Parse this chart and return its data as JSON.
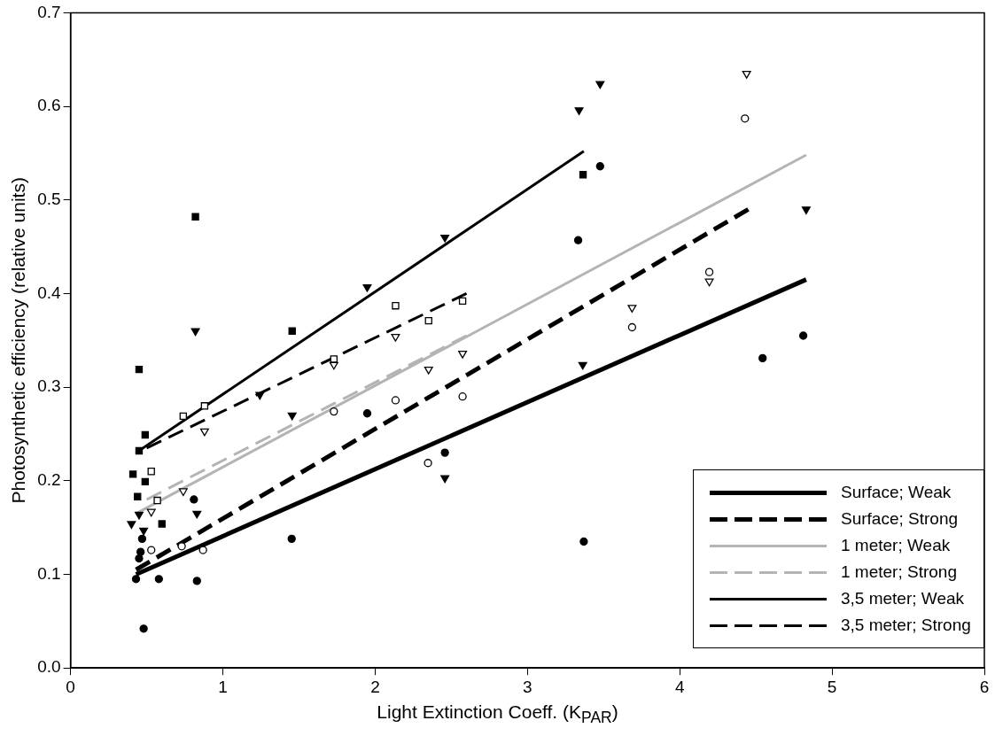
{
  "chart_data": {
    "type": "scatter",
    "xlabel": "Light Extinction Coeff. (K$_{PAR}$)",
    "ylabel": "Photosynthetic efficiency (relative units)",
    "xlim": [
      0,
      6
    ],
    "xticks": [
      0,
      1,
      2,
      3,
      4,
      5,
      6
    ],
    "ylim": [
      0,
      0.7
    ],
    "yticks": [
      {
        "value": 0,
        "label": "0.0"
      },
      {
        "value": 0.1,
        "label": "0.1"
      },
      {
        "value": 0.2,
        "label": "0.2"
      },
      {
        "value": 0.3,
        "label": "0.3"
      },
      {
        "value": 0.4,
        "label": "0.4"
      },
      {
        "value": 0.5,
        "label": "0.5"
      },
      {
        "value": 0.6,
        "label": "0.6"
      },
      {
        "value": 0.7,
        "label": "0.7"
      }
    ],
    "grid": false,
    "legend": "bottom right",
    "series": [
      {
        "marker": "circle",
        "color": "#000000",
        "x": [
          0.47,
          0.46,
          0.45,
          0.43,
          0.58,
          0.83,
          0.48,
          0.81,
          1.452,
          1.948,
          2.458,
          3.333,
          3.477,
          3.37,
          4.544,
          4.811
        ],
        "values": [
          0.138,
          0.124,
          0.117,
          0.095,
          0.095,
          0.093,
          0.042,
          0.18,
          0.138,
          0.272,
          0.23,
          0.457,
          0.536,
          0.135,
          0.331,
          0.355
        ]
      },
      {
        "marker": "circle",
        "color": "#000000",
        "x": [
          0.53,
          0.73,
          0.87,
          1.729,
          2.134,
          2.347,
          2.574,
          3.687,
          4.194,
          4.428
        ],
        "values": [
          0.126,
          0.13,
          0.126,
          0.274,
          0.286,
          0.219,
          0.29,
          0.364,
          0.423,
          0.587
        ]
      },
      {
        "marker": "triangle",
        "color": "#000000",
        "x": [
          0.82,
          0.83,
          0.45,
          0.4,
          0.48,
          1.243,
          1.455,
          1.948,
          2.458,
          2.458,
          3.339,
          3.477,
          3.363,
          4.83
        ],
        "values": [
          0.36,
          0.165,
          0.164,
          0.154,
          0.147,
          0.292,
          0.27,
          0.407,
          0.46,
          0.203,
          0.596,
          0.624,
          0.324,
          0.49
        ]
      },
      {
        "marker": "triangle",
        "color": "#000000",
        "x": [
          0.88,
          0.74,
          0.53,
          1.729,
          2.134,
          2.351,
          2.574,
          3.687,
          4.194,
          4.439
        ],
        "values": [
          0.253,
          0.189,
          0.167,
          0.324,
          0.354,
          0.319,
          0.336,
          0.385,
          0.413,
          0.635
        ]
      },
      {
        "marker": "square",
        "color": "#000000",
        "x": [
          0.82,
          0.45,
          0.49,
          0.45,
          0.41,
          0.49,
          0.44,
          0.6,
          1.455,
          3.365
        ],
        "values": [
          0.482,
          0.319,
          0.249,
          0.232,
          0.207,
          0.199,
          0.183,
          0.154,
          0.36,
          0.527
        ]
      },
      {
        "marker": "square",
        "color": "#000000",
        "x": [
          0.74,
          0.88,
          0.53,
          0.57,
          1.729,
          2.134,
          2.351,
          2.574
        ],
        "values": [
          0.269,
          0.28,
          0.21,
          0.179,
          0.33,
          0.387,
          0.371,
          0.392
        ]
      },
      {
        "type": "line",
        "name": "Surface; Weak",
        "color": "#000000",
        "line_style": "solid",
        "x": [
          0.43,
          4.83
        ],
        "values": [
          0.1,
          0.415
        ]
      },
      {
        "type": "line",
        "name": "Surface; Strong",
        "color": "#000000",
        "line_style": "dashed",
        "x": [
          0.43,
          4.45
        ],
        "values": [
          0.105,
          0.49
        ]
      },
      {
        "type": "line",
        "name": "1 meter; Weak",
        "color": "#b4b4b4",
        "line_style": "solid",
        "x": [
          0.43,
          4.83
        ],
        "values": [
          0.165,
          0.548
        ]
      },
      {
        "type": "line",
        "name": "1 meter; Strong",
        "color": "#b4b4b4",
        "line_style": "dashed",
        "x": [
          0.5,
          2.6
        ],
        "values": [
          0.18,
          0.355
        ]
      },
      {
        "type": "line",
        "name": "3,5 meter; Weak",
        "color": "#000000",
        "line_style": "solid",
        "x": [
          0.43,
          3.37
        ],
        "values": [
          0.23,
          0.552
        ]
      },
      {
        "type": "line",
        "name": "3,5 meter; Strong",
        "color": "#000000",
        "line_style": "dashed",
        "x": [
          0.5,
          2.6
        ],
        "values": [
          0.235,
          0.4
        ]
      }
    ]
  }
}
